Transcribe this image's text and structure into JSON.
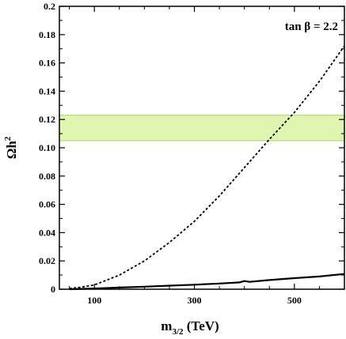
{
  "chart_data": {
    "type": "line",
    "title": "",
    "xlabel": {
      "main": "m",
      "sub": "3/2",
      "unit": " (TeV)"
    },
    "ylabel": {
      "main": "Ωh",
      "sup": "2"
    },
    "annotation": "tan β = 2.2",
    "xlim": [
      30,
      600
    ],
    "ylim": [
      0,
      0.2
    ],
    "xticks": [
      100,
      300,
      500
    ],
    "xtick_labels": [
      "100",
      "300",
      "500"
    ],
    "yticks": [
      0,
      0.02,
      0.04,
      0.06,
      0.08,
      0.1,
      0.12,
      0.14,
      0.16,
      0.18,
      0.2
    ],
    "ytick_labels": [
      "0",
      "0.02",
      "0.04",
      "0.06",
      "0.08",
      "0.10",
      "0.12",
      "0.14",
      "0.16",
      "0.18",
      "0.2"
    ],
    "band": {
      "y_min": 0.105,
      "y_max": 0.123,
      "color": "#dff5b0",
      "edge_color": "#9acd32"
    },
    "grid": false,
    "series": [
      {
        "style": "dashed",
        "color": "#000000",
        "x": [
          50,
          75,
          100,
          150,
          200,
          250,
          300,
          350,
          400,
          450,
          500,
          550,
          600
        ],
        "y": [
          0.0005,
          0.0015,
          0.003,
          0.01,
          0.02,
          0.033,
          0.048,
          0.066,
          0.086,
          0.106,
          0.125,
          0.147,
          0.172
        ]
      },
      {
        "style": "solid",
        "color": "#000000",
        "x": [
          50,
          100,
          150,
          200,
          250,
          300,
          350,
          390,
          400,
          410,
          450,
          500,
          550,
          600
        ],
        "y": [
          0.0,
          0.0005,
          0.0012,
          0.0018,
          0.0025,
          0.0032,
          0.004,
          0.0048,
          0.0058,
          0.0052,
          0.0065,
          0.0078,
          0.009,
          0.0108
        ]
      }
    ]
  }
}
